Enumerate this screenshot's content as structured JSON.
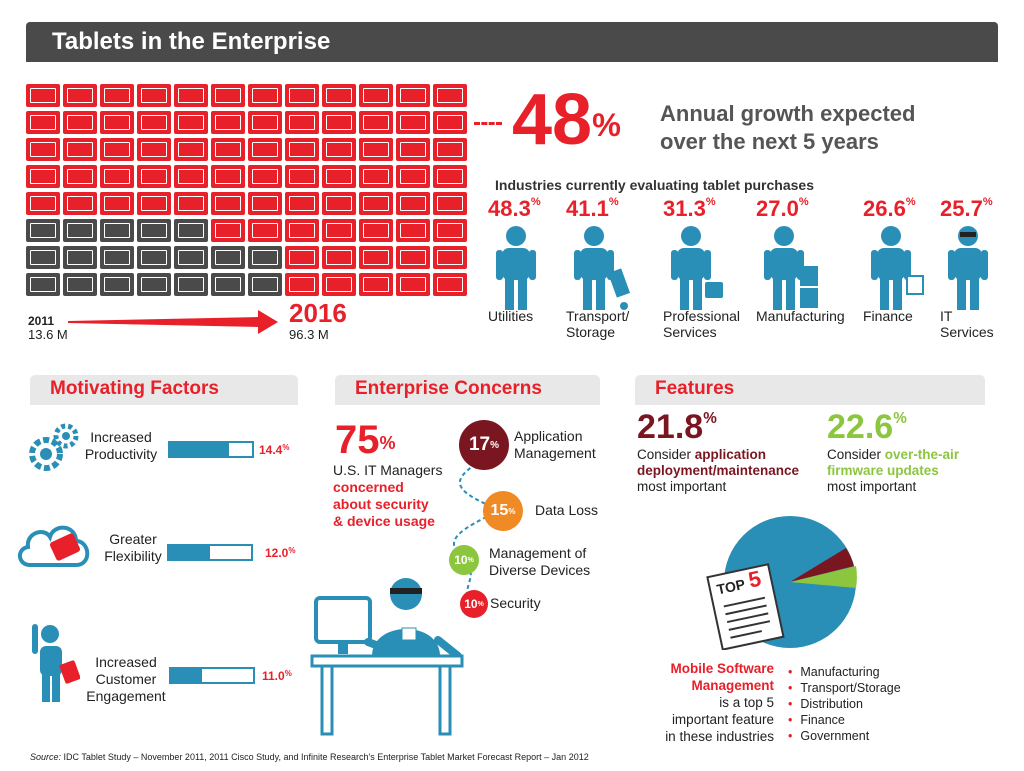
{
  "header": {
    "title": "Tablets in the Enterprise"
  },
  "growth": {
    "percent": "48",
    "percent_sign": "%",
    "line1": "Annual growth expected",
    "line2": "over the next 5 years",
    "start_year": "2011",
    "start_value": "13.6 M",
    "end_year": "2016",
    "end_value": "96.3 M",
    "grid_cols": 12,
    "grid_rows": 8,
    "grey_cells": 19
  },
  "industries": {
    "title": "Industries currently evaluating tablet purchases",
    "items": [
      {
        "pct": "48.3",
        "label1": "Utilities",
        "label2": ""
      },
      {
        "pct": "41.1",
        "label1": "Transport/",
        "label2": "Storage"
      },
      {
        "pct": "31.3",
        "label1": "Professional",
        "label2": "Services"
      },
      {
        "pct": "27.0",
        "label1": "Manufacturing",
        "label2": ""
      },
      {
        "pct": "26.6",
        "label1": "Finance",
        "label2": ""
      },
      {
        "pct": "25.7",
        "label1": "IT",
        "label2": "Services"
      }
    ]
  },
  "motivating": {
    "title": "Motivating Factors",
    "items": [
      {
        "line1": "Increased",
        "line2": "Productivity",
        "line3": "",
        "pct": "14.4",
        "fill": 0.72
      },
      {
        "line1": "Greater",
        "line2": "Flexibility",
        "line3": "",
        "pct": "12.0",
        "fill": 0.5
      },
      {
        "line1": "Increased",
        "line2": "Customer",
        "line3": "Engagement",
        "pct": "11.0",
        "fill": 0.38
      }
    ]
  },
  "concerns": {
    "title": "Enterprise Concerns",
    "big_pct": "75",
    "line1": "U.S. IT Managers",
    "line2": "concerned",
    "line3": "about security",
    "line4": "& device usage",
    "items": [
      {
        "pct": "17",
        "label1": "Application",
        "label2": "Management",
        "color": "#7a1620"
      },
      {
        "pct": "15",
        "label1": "Data Loss",
        "label2": "",
        "color": "#f08a24"
      },
      {
        "pct": "10",
        "label1": "Management of",
        "label2": "Diverse Devices",
        "color": "#8cc63f"
      },
      {
        "pct": "10",
        "label1": "Security",
        "label2": "",
        "color": "#e8202a"
      }
    ]
  },
  "features": {
    "title": "Features",
    "left": {
      "pct": "21.8",
      "l1": "Consider",
      "l1b": "application",
      "l2": "deployment/maintenance",
      "l3": "most important"
    },
    "right": {
      "pct": "22.6",
      "l1": "Consider",
      "l1b": "over-the-air",
      "l2": "firmware updates",
      "l3": "most important"
    },
    "top5": "TOP",
    "top5_num": "5",
    "msm_line1": "Mobile Software",
    "msm_line2": "Management",
    "msm_line3": "is a top 5",
    "msm_line4": "important feature",
    "msm_line5": "in these industries",
    "list": [
      "Manufacturing",
      "Transport/Storage",
      "Distribution",
      "Finance",
      "Government"
    ]
  },
  "footer": {
    "source_label": "Source:",
    "source_text": "IDC Tablet Study – November 2011, 2011 Cisco Study, and Infinite Research's Enterprise Tablet Market Forecast Report – Jan 2012"
  },
  "colors": {
    "red": "#e8202a",
    "blue": "#2a8fb6",
    "dark_grey": "#4a4a4a",
    "dark_red": "#7a1620",
    "green": "#8cc63f",
    "orange": "#f08a24"
  }
}
